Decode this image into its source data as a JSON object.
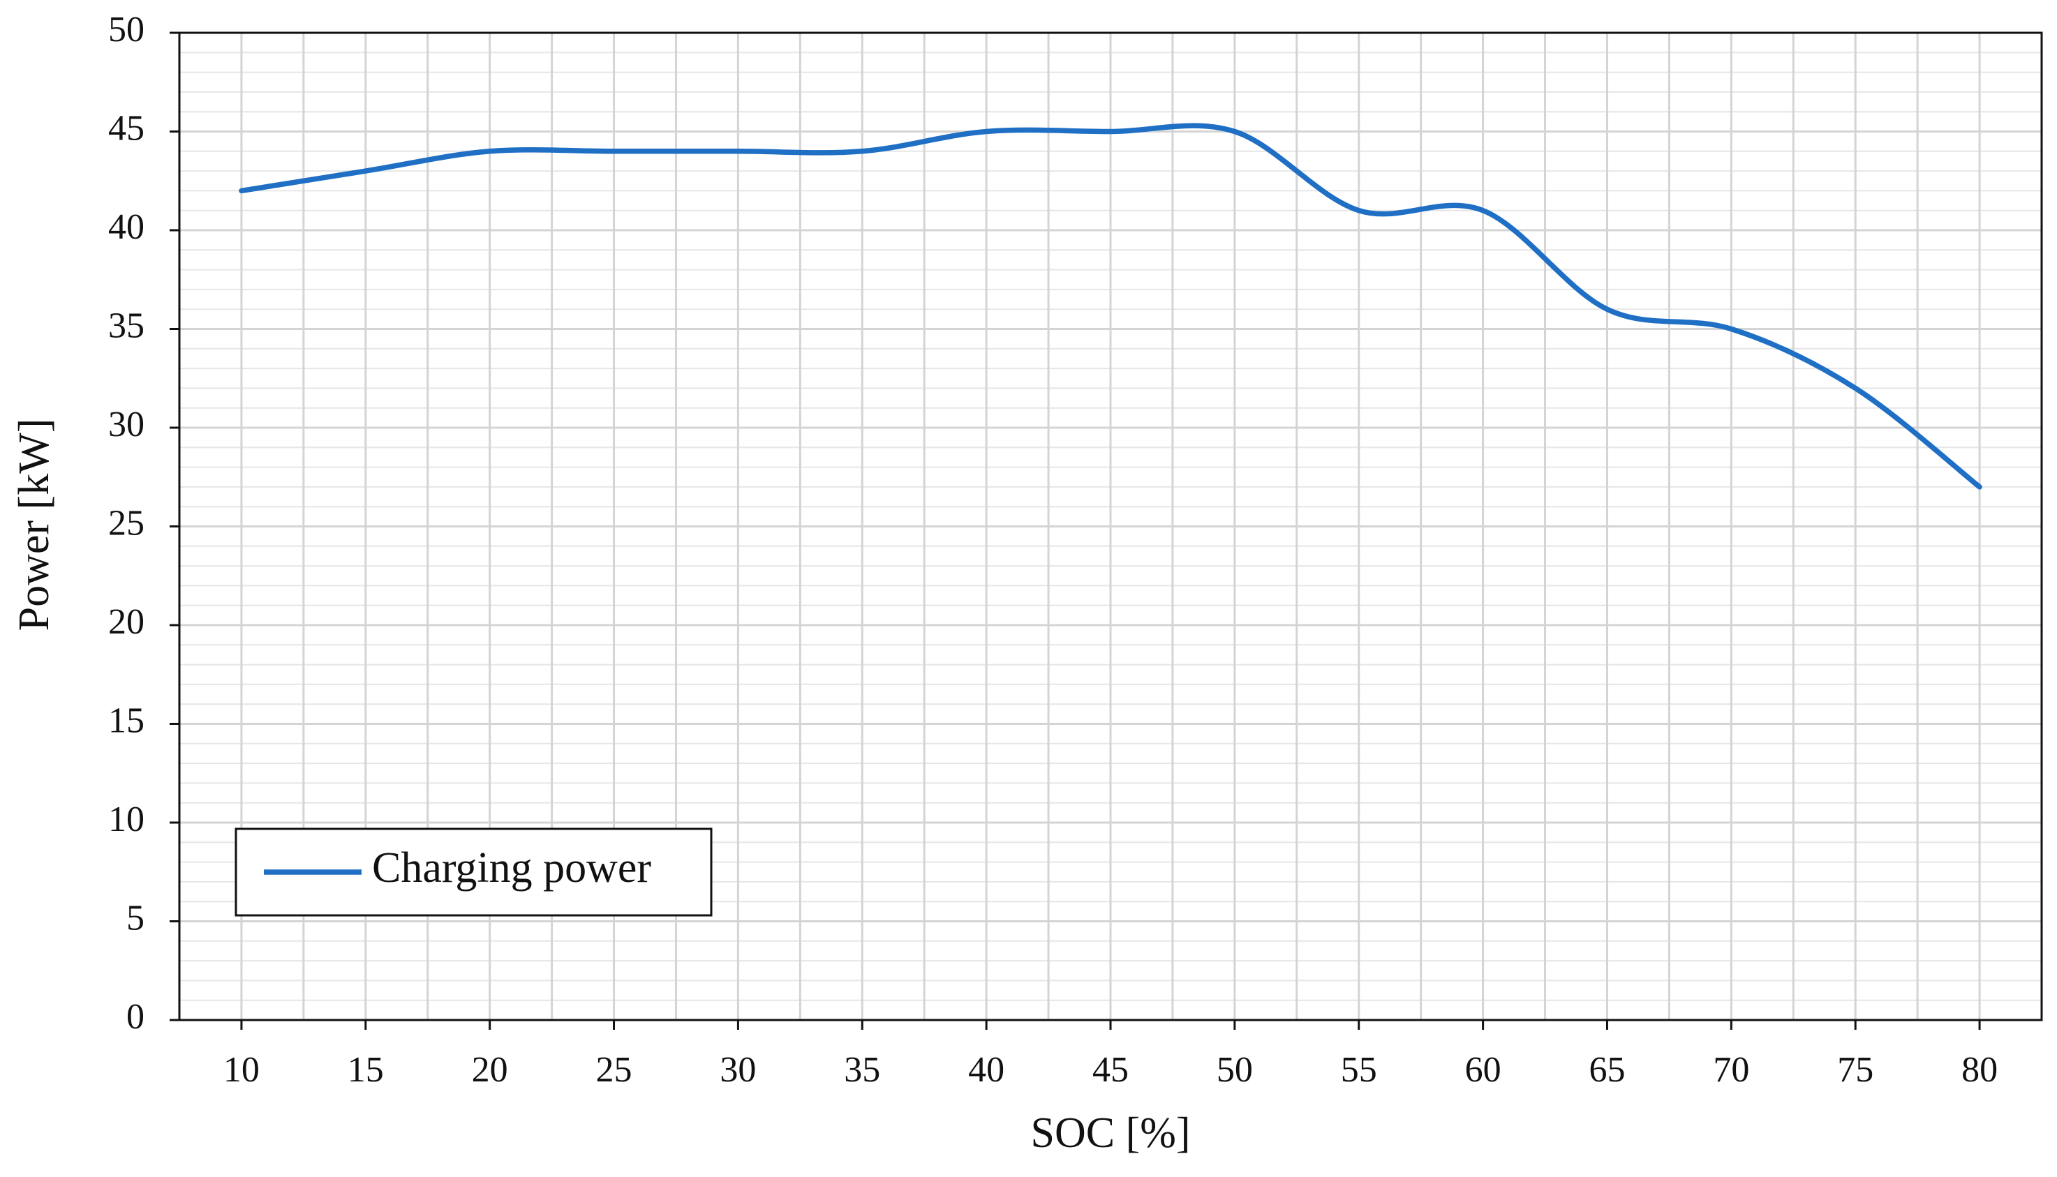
{
  "chart_data": {
    "type": "line",
    "x_label": "SOC [%]",
    "y_label": "Power [kW]",
    "x": [
      10,
      15,
      20,
      25,
      30,
      35,
      40,
      45,
      50,
      55,
      60,
      65,
      70,
      75,
      80
    ],
    "series": [
      {
        "name": "Charging power",
        "color": "#1f6fc5",
        "values": [
          42,
          43,
          44,
          44,
          44,
          44,
          45,
          45,
          45,
          41,
          41,
          36,
          35,
          32,
          27
        ]
      }
    ],
    "xlim": [
      7.5,
      82.5
    ],
    "xticks": [
      10,
      15,
      20,
      25,
      30,
      35,
      40,
      45,
      50,
      55,
      60,
      65,
      70,
      75,
      80
    ],
    "ylim": [
      0,
      50
    ],
    "yticks": [
      0,
      5,
      10,
      15,
      20,
      25,
      30,
      35,
      40,
      45,
      50
    ],
    "grid": true,
    "smooth": true,
    "legend_position": "lower left"
  }
}
